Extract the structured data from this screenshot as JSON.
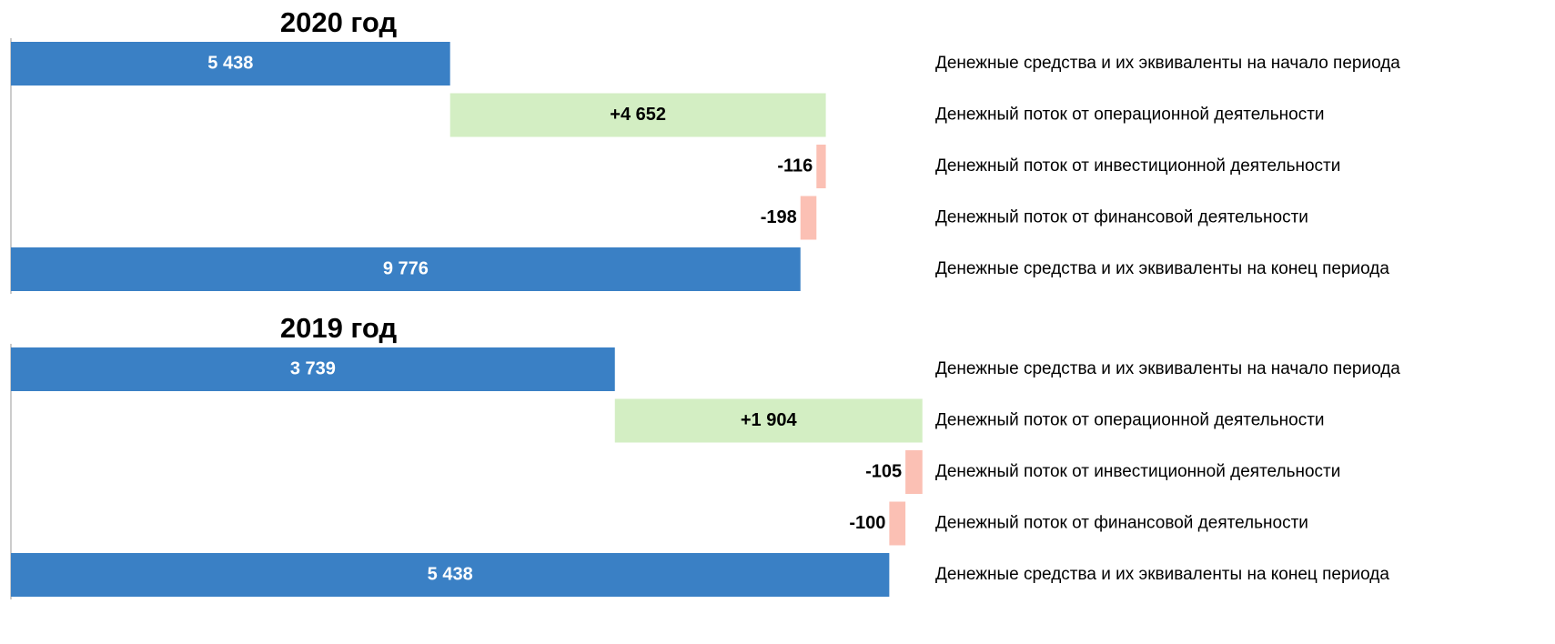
{
  "chart_data": [
    {
      "type": "waterfall",
      "title": "2020 год",
      "categories": [
        "Денежные средства и их эквиваленты на начало периода",
        "Денежный поток от операционной деятельности",
        "Денежный поток от инвестиционной деятельности",
        "Денежный поток от финансовой деятельности",
        "Денежные средства и их эквиваленты на конец периода"
      ],
      "values": [
        5438,
        4652,
        -116,
        -198,
        9776
      ],
      "value_labels": [
        "5 438",
        "+4 652",
        "-116",
        "-198",
        "9 776"
      ],
      "measure": [
        "absolute",
        "relative",
        "relative",
        "relative",
        "total"
      ],
      "colors": [
        "#3a80c5",
        "#d3eec3",
        "#fbc0b4",
        "#fbc0b4",
        "#3a80c5"
      ],
      "xlim": [
        0,
        11300
      ]
    },
    {
      "type": "waterfall",
      "title": "2019 год",
      "categories": [
        "Денежные средства и их эквиваленты на начало периода",
        "Денежный поток от операционной деятельности",
        "Денежный поток от инвестиционной деятельности",
        "Денежный поток от финансовой деятельности",
        "Денежные средства и их эквиваленты на конец периода"
      ],
      "values": [
        3739,
        1904,
        -105,
        -100,
        5438
      ],
      "value_labels": [
        "3 739",
        "+1 904",
        "-105",
        "-100",
        "5 438"
      ],
      "measure": [
        "absolute",
        "relative",
        "relative",
        "relative",
        "total"
      ],
      "colors": [
        "#3a80c5",
        "#d3eec3",
        "#fbc0b4",
        "#fbc0b4",
        "#3a80c5"
      ],
      "xlim": [
        0,
        5650
      ]
    }
  ]
}
